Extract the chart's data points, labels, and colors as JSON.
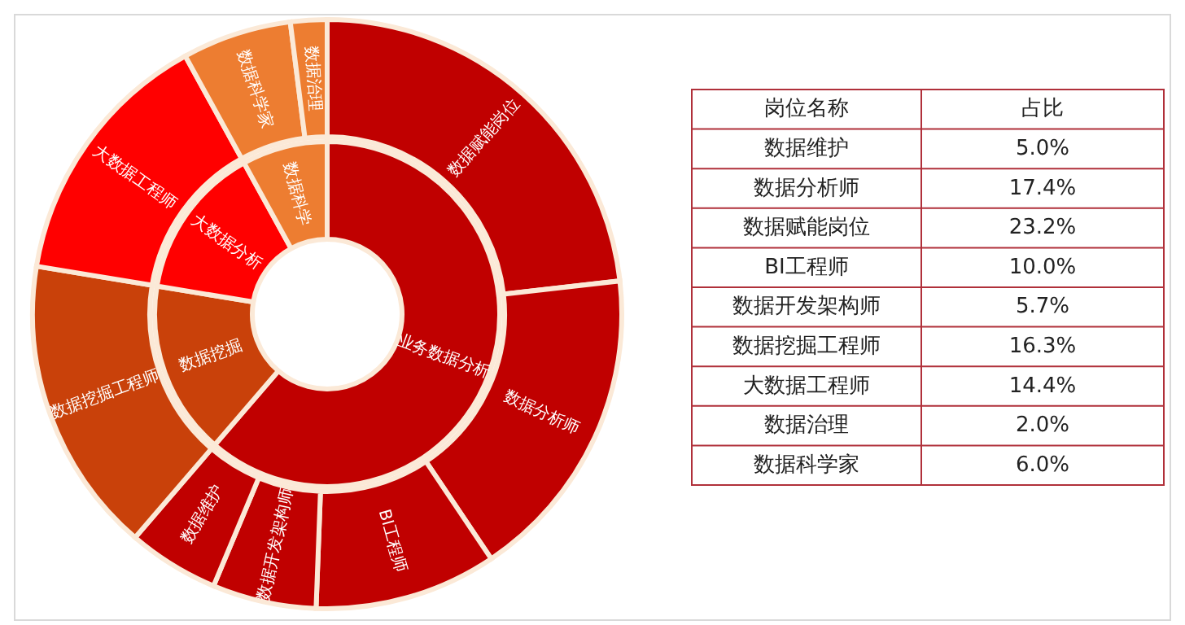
{
  "chart_data": [
    {
      "type": "donut",
      "categories": [
        "业务数据分析",
        "数据挖掘",
        "大数据分析",
        "数据科学"
      ],
      "values": [
        61.3,
        16.3,
        14.4,
        8.0
      ],
      "colors": [
        "#c00000",
        "#c9410a",
        "#ff0000",
        "#ed7d31"
      ]
    },
    {
      "type": "donut",
      "categories": [
        "数据赋能岗位",
        "数据分析师",
        "BI工程师",
        "数据开发架构师",
        "数据维护",
        "数据挖掘工程师",
        "大数据工程师",
        "数据科学家",
        "数据治理"
      ],
      "values": [
        23.2,
        17.4,
        10.0,
        5.7,
        5.0,
        16.3,
        14.4,
        6.0,
        2.0
      ],
      "colors": [
        "#c00000",
        "#c00000",
        "#c00000",
        "#c00000",
        "#c00000",
        "#c9410a",
        "#ff0000",
        "#ed7d31",
        "#ed7d31"
      ]
    },
    {
      "type": "other",
      "annotations": [
        "岗位名称",
        "占比"
      ],
      "categories": [
        "数据维护",
        "数据分析师",
        "数据赋能岗位",
        "BI工程师",
        "数据开发架构师",
        "数据挖掘工程师",
        "大数据工程师",
        "数据治理",
        "数据科学家"
      ],
      "value_labels": [
        "5.0%",
        "17.4%",
        "23.2%",
        "10.0%",
        "5.7%",
        "16.3%",
        "14.4%",
        "2.0%",
        "6.0%"
      ]
    }
  ]
}
